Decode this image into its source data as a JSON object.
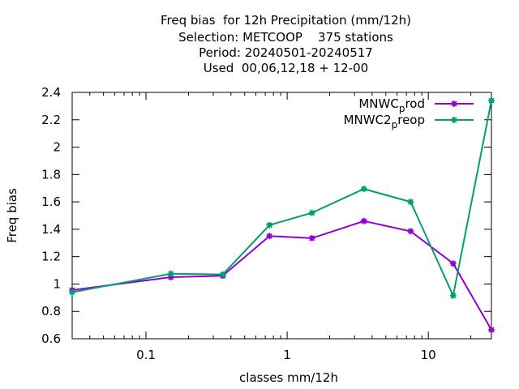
{
  "colors": {
    "MNWC_prod": "#9400d3",
    "MNWC2_preop": "#009e73"
  },
  "chart_data": {
    "type": "line",
    "title": [
      "Freq bias  for 12h Precipitation (mm/12h)",
      "Selection: METCOOP    375 stations",
      "Period: 20240501-20240517",
      "Used  00,06,12,18 + 12-00"
    ],
    "xlabel": "classes mm/12h",
    "ylabel": "Freq bias",
    "xscale": "log",
    "xlim": [
      0.03,
      28
    ],
    "ylim": [
      0.6,
      2.4
    ],
    "x_ticks": [
      {
        "value": 0.1,
        "label": "0.1"
      },
      {
        "value": 1,
        "label": "1"
      },
      {
        "value": 10,
        "label": "10"
      }
    ],
    "y_ticks": [
      {
        "value": 0.6,
        "label": "0.6"
      },
      {
        "value": 0.8,
        "label": "0.8"
      },
      {
        "value": 1.0,
        "label": "1"
      },
      {
        "value": 1.2,
        "label": "1.2"
      },
      {
        "value": 1.4,
        "label": "1.4"
      },
      {
        "value": 1.6,
        "label": "1.6"
      },
      {
        "value": 1.8,
        "label": "1.8"
      },
      {
        "value": 2.0,
        "label": "2"
      },
      {
        "value": 2.2,
        "label": "2.2"
      },
      {
        "value": 2.4,
        "label": "2.4"
      }
    ],
    "grid": false,
    "legend_position": "top-right",
    "series": [
      {
        "name": "MNWC_prod",
        "legend_base": "MNWC",
        "legend_sub": "p",
        "legend_rest": "rod",
        "x": [
          0.03,
          0.15,
          0.35,
          0.75,
          1.5,
          3.5,
          7.5,
          15,
          28
        ],
        "values": [
          0.955,
          1.05,
          1.06,
          1.35,
          1.335,
          1.46,
          1.385,
          1.15,
          0.665
        ]
      },
      {
        "name": "MNWC2_preop",
        "legend_base": "MNWC2",
        "legend_sub": "p",
        "legend_rest": "reop",
        "x": [
          0.03,
          0.15,
          0.35,
          0.75,
          1.5,
          3.5,
          7.5,
          15,
          28
        ],
        "values": [
          0.94,
          1.075,
          1.07,
          1.43,
          1.52,
          1.695,
          1.6,
          0.915,
          2.34
        ]
      }
    ]
  }
}
